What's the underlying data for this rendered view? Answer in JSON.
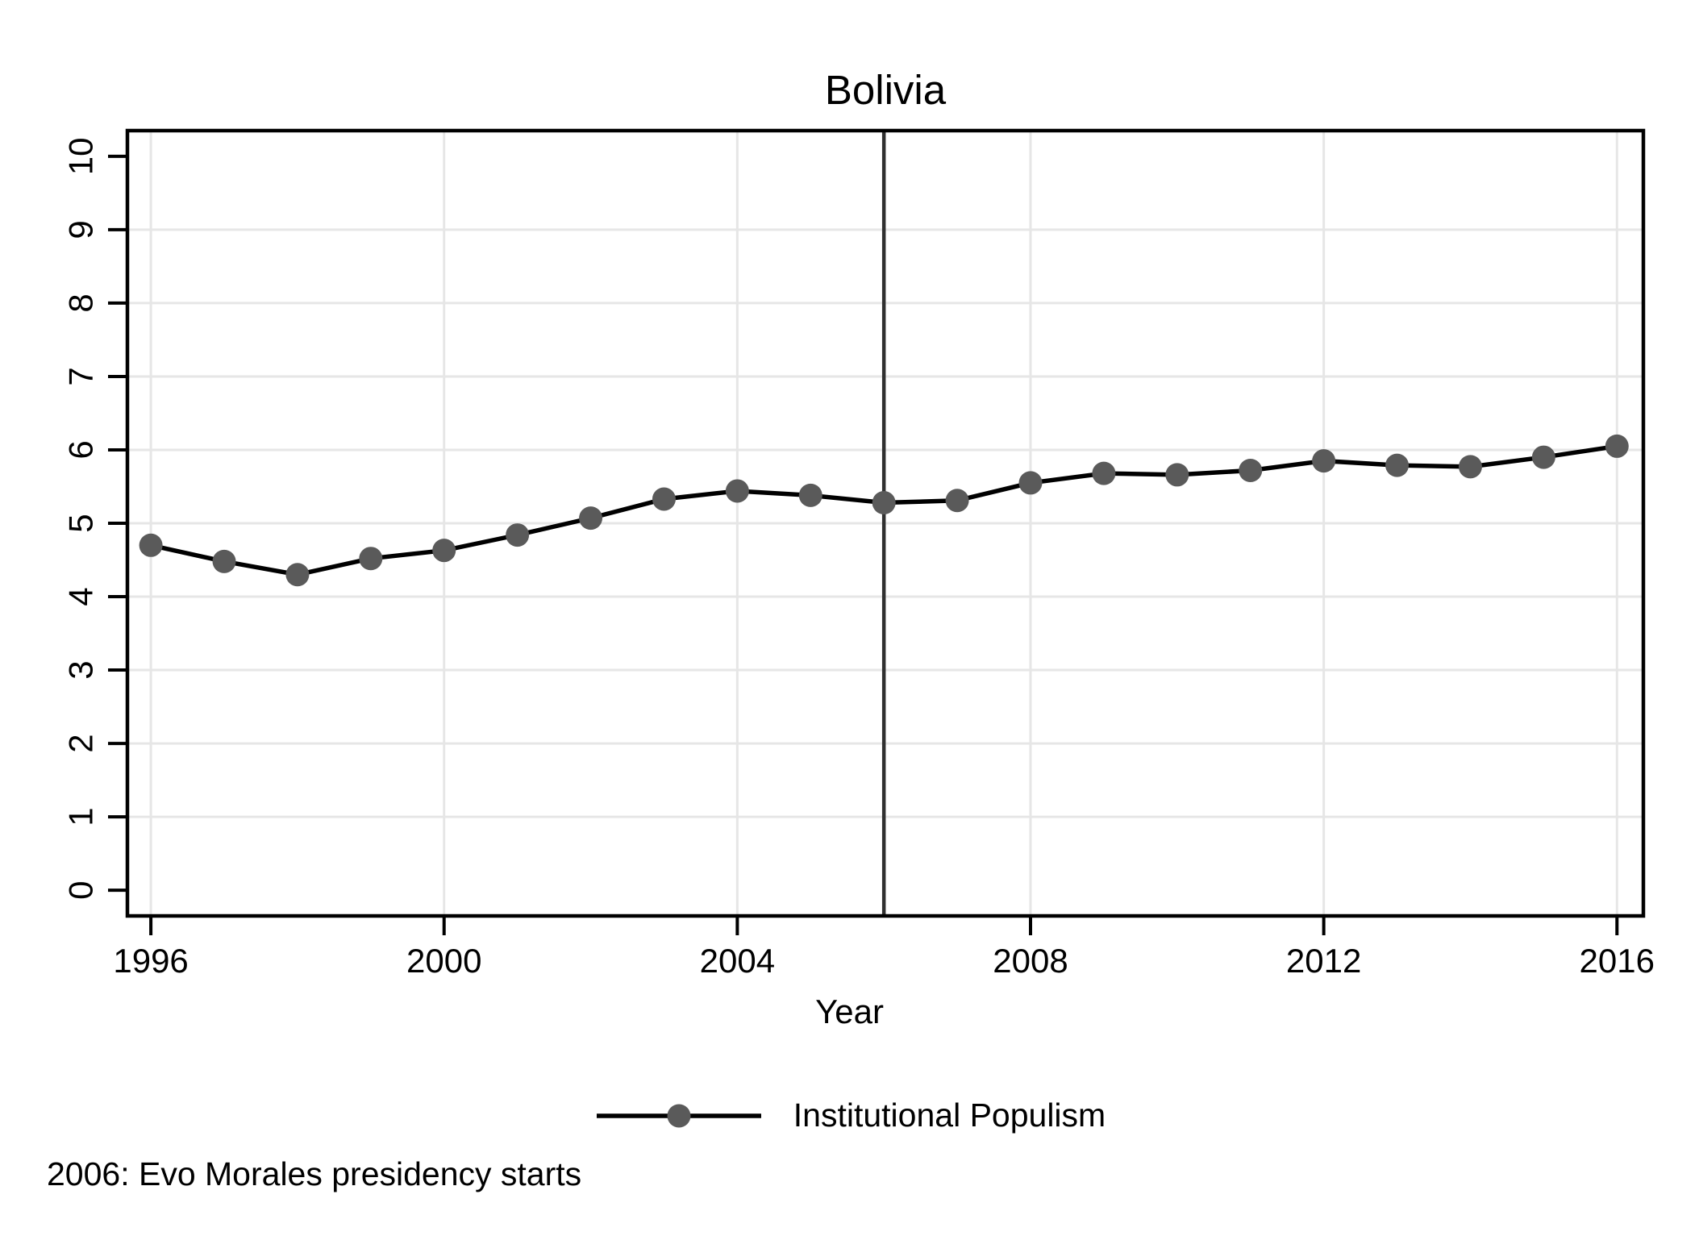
{
  "title": "Bolivia",
  "xlabel": "Year",
  "footnote": "2006: Evo Morales presidency starts",
  "legend": {
    "label": "Institutional Populism",
    "marker_icon": "circle-on-line"
  },
  "colors": {
    "line": "#000000",
    "marker": "#5a5a5a",
    "grid": "#e6e6e6",
    "axis": "#000000",
    "refline": "#303030",
    "text": "#000000",
    "background": "#ffffff"
  },
  "chart_data": {
    "type": "line",
    "title": "Bolivia",
    "xlabel": "Year",
    "ylabel": "",
    "series": [
      {
        "name": "Institutional Populism",
        "x": [
          1996,
          1997,
          1998,
          1999,
          2000,
          2001,
          2002,
          2003,
          2004,
          2005,
          2006,
          2007,
          2008,
          2009,
          2010,
          2011,
          2012,
          2013,
          2014,
          2015,
          2016
        ],
        "values": [
          4.7,
          4.48,
          4.3,
          4.52,
          4.63,
          4.84,
          5.07,
          5.33,
          5.44,
          5.38,
          5.28,
          5.31,
          5.55,
          5.68,
          5.66,
          5.72,
          5.85,
          5.79,
          5.77,
          5.9,
          6.05
        ]
      }
    ],
    "xticks": [
      1996,
      2000,
      2004,
      2008,
      2012,
      2016
    ],
    "yticks": [
      0,
      1,
      2,
      3,
      4,
      5,
      6,
      7,
      8,
      9,
      10
    ],
    "ygrid_ticks": [
      1,
      2,
      3,
      4,
      5,
      6,
      7,
      8,
      9
    ],
    "xlim": [
      1995.68,
      2016.36
    ],
    "ylim": [
      -0.35,
      10.35
    ],
    "grid": true,
    "legend_position": "bottom",
    "reference_line": {
      "x": 2006,
      "note": "2006: Evo Morales presidency starts"
    }
  }
}
